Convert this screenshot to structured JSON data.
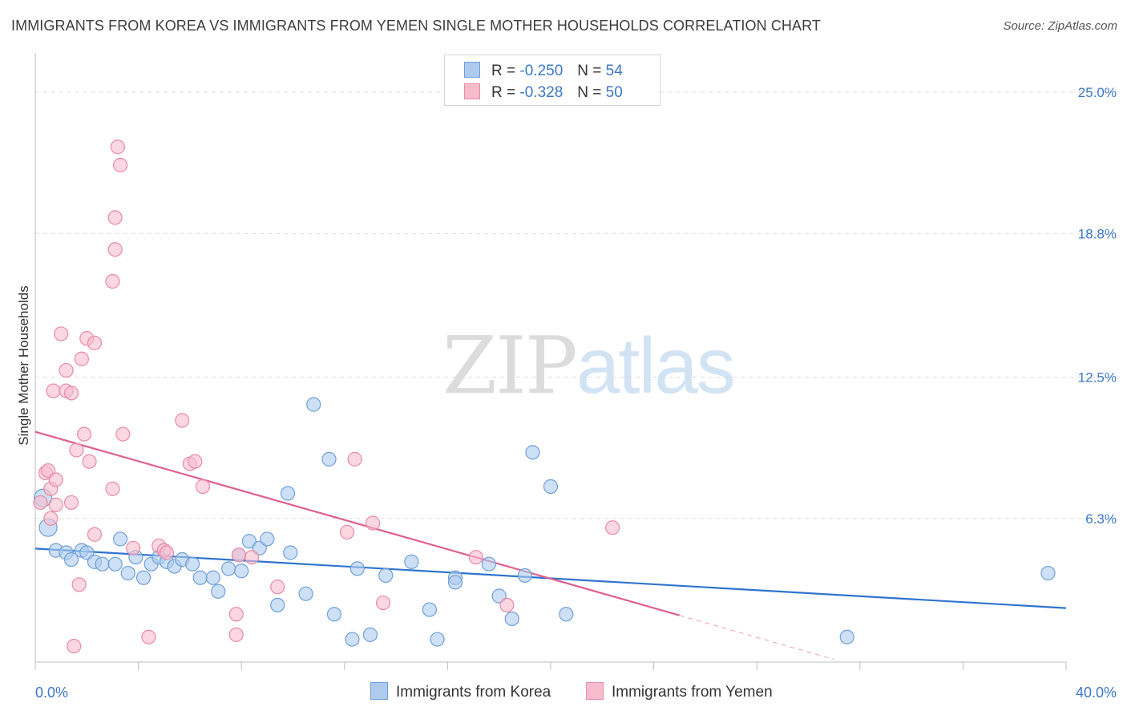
{
  "title": "IMMIGRANTS FROM KOREA VS IMMIGRANTS FROM YEMEN SINGLE MOTHER HOUSEHOLDS CORRELATION CHART",
  "source": "Source: ZipAtlas.com",
  "watermark": {
    "part1": "ZIP",
    "part2": "atlas"
  },
  "legend": {
    "korea": {
      "r_label": "R =",
      "r_value": "-0.250",
      "n_label": "N =",
      "n_value": "54"
    },
    "yemen": {
      "r_label": "R =",
      "r_value": "-0.328",
      "n_label": "N =",
      "n_value": "50"
    }
  },
  "bottom_legend": {
    "korea": "Immigrants from Korea",
    "yemen": "Immigrants from Yemen"
  },
  "colors": {
    "korea_fill": "#aecbee",
    "korea_stroke": "#6e9fdb",
    "korea_line": "#2f74cf",
    "yemen_fill": "#f6bccd",
    "yemen_stroke": "#e98aa8",
    "yemen_line": "#e0608f",
    "axis_text": "#3b78c8",
    "grid": "#dcdcdc"
  },
  "chart_data": {
    "type": "scatter",
    "title": "IMMIGRANTS FROM KOREA VS IMMIGRANTS FROM YEMEN SINGLE MOTHER HOUSEHOLDS CORRELATION CHART",
    "xlabel": "",
    "ylabel": "Single Mother Households",
    "xlim": [
      0,
      40
    ],
    "ylim": [
      0,
      26.3
    ],
    "x_tick_labels": [
      "0.0%",
      "40.0%"
    ],
    "y_ticks": [
      6.3,
      12.5,
      18.8,
      25.0
    ],
    "y_tick_labels": [
      "6.3%",
      "12.5%",
      "18.8%",
      "25.0%"
    ],
    "grid": true,
    "series": [
      {
        "name": "Immigrants from Korea",
        "points": [
          [
            0.3,
            7.2
          ],
          [
            0.5,
            5.9
          ],
          [
            0.8,
            4.9
          ],
          [
            1.2,
            4.8
          ],
          [
            1.4,
            4.5
          ],
          [
            1.8,
            4.9
          ],
          [
            2.0,
            4.8
          ],
          [
            2.3,
            4.4
          ],
          [
            2.6,
            4.3
          ],
          [
            3.1,
            4.3
          ],
          [
            3.3,
            5.4
          ],
          [
            3.6,
            3.9
          ],
          [
            3.9,
            4.6
          ],
          [
            4.2,
            3.7
          ],
          [
            4.5,
            4.3
          ],
          [
            4.8,
            4.6
          ],
          [
            5.1,
            4.4
          ],
          [
            5.4,
            4.2
          ],
          [
            5.7,
            4.5
          ],
          [
            6.1,
            4.3
          ],
          [
            6.4,
            3.7
          ],
          [
            6.9,
            3.7
          ],
          [
            7.1,
            3.1
          ],
          [
            7.5,
            4.1
          ],
          [
            7.9,
            4.7
          ],
          [
            8.0,
            4.0
          ],
          [
            8.3,
            5.3
          ],
          [
            8.7,
            5.0
          ],
          [
            9.0,
            5.4
          ],
          [
            9.4,
            2.5
          ],
          [
            9.8,
            7.4
          ],
          [
            9.9,
            4.8
          ],
          [
            10.5,
            3.0
          ],
          [
            10.8,
            11.3
          ],
          [
            11.4,
            8.9
          ],
          [
            11.6,
            2.1
          ],
          [
            12.3,
            1.0
          ],
          [
            12.5,
            4.1
          ],
          [
            13.0,
            1.2
          ],
          [
            13.6,
            3.8
          ],
          [
            14.6,
            4.4
          ],
          [
            15.3,
            2.3
          ],
          [
            15.6,
            1.0
          ],
          [
            16.3,
            3.7
          ],
          [
            16.3,
            3.5
          ],
          [
            17.6,
            4.3
          ],
          [
            18.0,
            2.9
          ],
          [
            18.5,
            1.9
          ],
          [
            19.0,
            3.8
          ],
          [
            19.3,
            9.2
          ],
          [
            20.0,
            7.7
          ],
          [
            20.6,
            2.1
          ],
          [
            31.5,
            1.1
          ],
          [
            39.3,
            3.9
          ]
        ]
      },
      {
        "name": "Immigrants from Yemen",
        "points": [
          [
            0.2,
            7.0
          ],
          [
            0.4,
            8.3
          ],
          [
            0.5,
            8.4
          ],
          [
            0.6,
            7.6
          ],
          [
            0.6,
            6.3
          ],
          [
            0.7,
            11.9
          ],
          [
            0.8,
            8.0
          ],
          [
            0.8,
            6.9
          ],
          [
            1.0,
            14.4
          ],
          [
            1.2,
            12.8
          ],
          [
            1.2,
            11.9
          ],
          [
            1.4,
            11.8
          ],
          [
            1.4,
            7.0
          ],
          [
            1.5,
            0.7
          ],
          [
            1.6,
            9.3
          ],
          [
            1.7,
            3.4
          ],
          [
            1.8,
            13.3
          ],
          [
            1.9,
            10.0
          ],
          [
            2.0,
            14.2
          ],
          [
            2.1,
            8.8
          ],
          [
            2.3,
            14.0
          ],
          [
            2.3,
            5.6
          ],
          [
            3.0,
            16.7
          ],
          [
            3.0,
            7.6
          ],
          [
            3.1,
            18.1
          ],
          [
            3.1,
            19.5
          ],
          [
            3.2,
            22.6
          ],
          [
            3.3,
            21.8
          ],
          [
            3.4,
            10.0
          ],
          [
            3.8,
            5.0
          ],
          [
            4.4,
            1.1
          ],
          [
            4.8,
            5.1
          ],
          [
            5.0,
            4.9
          ],
          [
            5.1,
            4.8
          ],
          [
            5.7,
            10.6
          ],
          [
            6.0,
            8.7
          ],
          [
            6.2,
            8.8
          ],
          [
            6.5,
            7.7
          ],
          [
            7.8,
            2.1
          ],
          [
            7.9,
            4.7
          ],
          [
            7.8,
            1.2
          ],
          [
            8.4,
            4.6
          ],
          [
            9.4,
            3.3
          ],
          [
            12.1,
            5.7
          ],
          [
            12.4,
            8.9
          ],
          [
            13.1,
            6.1
          ],
          [
            13.5,
            2.6
          ],
          [
            17.1,
            4.6
          ],
          [
            18.3,
            2.5
          ],
          [
            22.4,
            5.9
          ]
        ]
      }
    ],
    "trend_lines": [
      {
        "name": "Immigrants from Korea",
        "x": [
          0,
          40
        ],
        "y": [
          4.98,
          2.37
        ]
      },
      {
        "name": "Immigrants from Yemen",
        "x": [
          0,
          25
        ],
        "y": [
          10.1,
          2.05
        ],
        "dashed_extension_x": [
          25,
          31
        ]
      }
    ]
  }
}
